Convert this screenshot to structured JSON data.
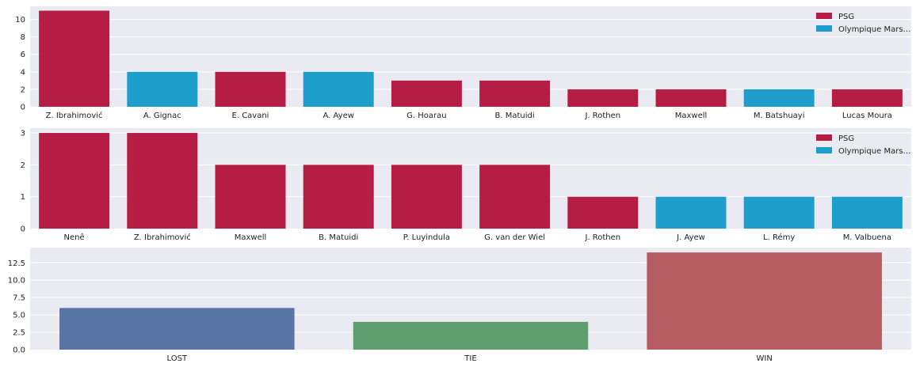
{
  "colors": {
    "background": "#eaeaf2",
    "grid": "#ffffff",
    "psg": "#b51d44",
    "marseille": "#1d9ecb",
    "lost": "#5874a4",
    "tie": "#5f9e6e",
    "win": "#b55d60"
  },
  "chart_data": [
    {
      "type": "bar",
      "categories": [
        "Z. Ibrahimović",
        "A. Gignac",
        "E. Cavani",
        "A. Ayew",
        "G. Hoarau",
        "B. Matuidi",
        "J. Rothen",
        "Maxwell",
        "M. Batshuayi",
        "Lucas Moura"
      ],
      "values": [
        11,
        4,
        4,
        4,
        3,
        3,
        2,
        2,
        2,
        2
      ],
      "teams": [
        "PSG",
        "Olympique Mars…",
        "PSG",
        "Olympique Mars…",
        "PSG",
        "PSG",
        "PSG",
        "PSG",
        "Olympique Mars…",
        "PSG"
      ],
      "ylim": [
        0,
        11.5
      ],
      "yticks": [
        "0",
        "2",
        "4",
        "6",
        "8",
        "10"
      ],
      "ytick_values": [
        0,
        2,
        4,
        6,
        8,
        10
      ],
      "legend": [
        {
          "label": "PSG",
          "color_key": "psg"
        },
        {
          "label": "Olympique Mars…",
          "color_key": "marseille"
        }
      ],
      "legend_position": "top-right",
      "grid": true
    },
    {
      "type": "bar",
      "categories": [
        "Nenê",
        "Z. Ibrahimović",
        "Maxwell",
        "B. Matuidi",
        "P. Luyindula",
        "G. van der Wiel",
        "J. Rothen",
        "J. Ayew",
        "L. Rémy",
        "M. Valbuena"
      ],
      "values": [
        3,
        3,
        2,
        2,
        2,
        2,
        1,
        1,
        1,
        1
      ],
      "teams": [
        "PSG",
        "PSG",
        "PSG",
        "PSG",
        "PSG",
        "PSG",
        "PSG",
        "Olympique Mars…",
        "Olympique Mars…",
        "Olympique Mars…"
      ],
      "ylim": [
        0,
        3.15
      ],
      "yticks": [
        "0",
        "1",
        "2",
        "3"
      ],
      "ytick_values": [
        0,
        1,
        2,
        3
      ],
      "legend": [
        {
          "label": "PSG",
          "color_key": "psg"
        },
        {
          "label": "Olympique Mars…",
          "color_key": "marseille"
        }
      ],
      "legend_position": "top-right",
      "grid": true
    },
    {
      "type": "bar",
      "categories": [
        "LOST",
        "TIE",
        "WIN"
      ],
      "values": [
        6,
        4,
        14
      ],
      "bar_color_keys": [
        "lost",
        "tie",
        "win"
      ],
      "ylim": [
        0,
        14.7
      ],
      "yticks": [
        "0.0",
        "2.5",
        "5.0",
        "7.5",
        "10.0",
        "12.5"
      ],
      "ytick_values": [
        0,
        2.5,
        5,
        7.5,
        10,
        12.5
      ],
      "grid": true
    }
  ]
}
